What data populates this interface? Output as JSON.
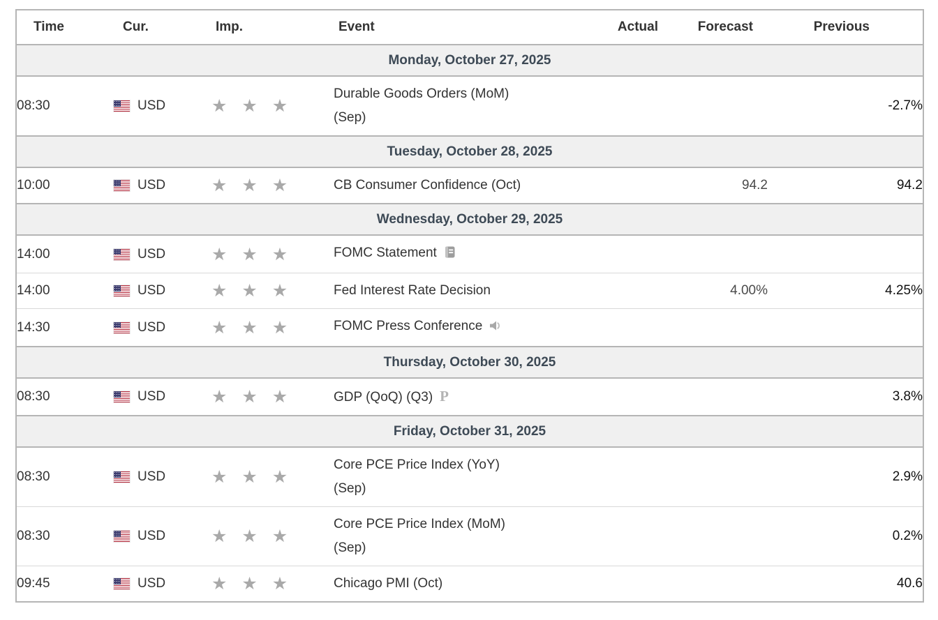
{
  "calendar": {
    "headers": [
      "Time",
      "Cur.",
      "Imp.",
      "Event",
      "Actual",
      "Forecast",
      "Previous"
    ],
    "sections": [
      {
        "date": "Monday, October 27, 2025",
        "rows": [
          {
            "time": "08:30",
            "currency": "USD",
            "importance": 3,
            "event_lines": [
              "Durable Goods Orders (MoM)",
              "(Sep)"
            ],
            "icon": null,
            "actual": "",
            "forecast": "",
            "previous": "-2.7%"
          }
        ]
      },
      {
        "date": "Tuesday, October 28, 2025",
        "rows": [
          {
            "time": "10:00",
            "currency": "USD",
            "importance": 3,
            "event_lines": [
              "CB Consumer Confidence (Oct)"
            ],
            "icon": null,
            "actual": "",
            "forecast": "94.2",
            "previous": "94.2"
          }
        ]
      },
      {
        "date": "Wednesday, October 29, 2025",
        "rows": [
          {
            "time": "14:00",
            "currency": "USD",
            "importance": 3,
            "event_lines": [
              "FOMC Statement"
            ],
            "icon": "report-icon",
            "actual": "",
            "forecast": "",
            "previous": ""
          },
          {
            "time": "14:00",
            "currency": "USD",
            "importance": 3,
            "event_lines": [
              "Fed Interest Rate Decision"
            ],
            "icon": null,
            "actual": "",
            "forecast": "4.00%",
            "previous": "4.25%"
          },
          {
            "time": "14:30",
            "currency": "USD",
            "importance": 3,
            "event_lines": [
              "FOMC Press Conference"
            ],
            "icon": "speaker-icon",
            "actual": "",
            "forecast": "",
            "previous": ""
          }
        ]
      },
      {
        "date": "Thursday, October 30, 2025",
        "rows": [
          {
            "time": "08:30",
            "currency": "USD",
            "importance": 3,
            "event_lines": [
              "GDP (QoQ) (Q3)"
            ],
            "icon": "preliminary-icon",
            "actual": "",
            "forecast": "",
            "previous": "3.8%"
          }
        ]
      },
      {
        "date": "Friday, October 31, 2025",
        "rows": [
          {
            "time": "08:30",
            "currency": "USD",
            "importance": 3,
            "event_lines": [
              "Core PCE Price Index (YoY)",
              "(Sep)"
            ],
            "icon": null,
            "actual": "",
            "forecast": "",
            "previous": "2.9%"
          },
          {
            "time": "08:30",
            "currency": "USD",
            "importance": 3,
            "event_lines": [
              "Core PCE Price Index (MoM)",
              "(Sep)"
            ],
            "icon": null,
            "actual": "",
            "forecast": "",
            "previous": "0.2%"
          },
          {
            "time": "09:45",
            "currency": "USD",
            "importance": 3,
            "event_lines": [
              "Chicago PMI (Oct)"
            ],
            "icon": null,
            "actual": "",
            "forecast": "",
            "previous": "40.6"
          }
        ]
      }
    ],
    "flag_name": "us-flag-icon",
    "star_glyph": "★"
  },
  "colors": {
    "date_row_bg": "#f0f0f0",
    "date_text": "#3e4a56",
    "border_heavy": "#b5b5b5",
    "border_light": "#d9d9d9",
    "star_gray": "#a9a9a9",
    "text": "#333333"
  }
}
